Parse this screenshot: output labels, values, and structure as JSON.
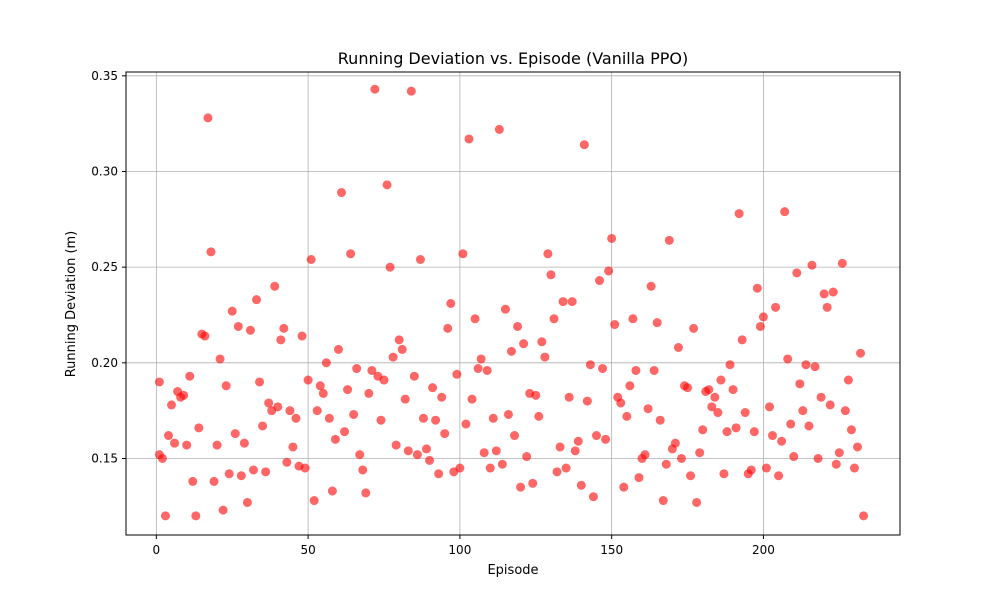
{
  "chart_data": {
    "type": "scatter",
    "title": "Running Deviation vs. Episode (Vanilla PPO)",
    "xlabel": "Episode",
    "ylabel": "Running Deviation (m)",
    "xlim": [
      -10,
      245
    ],
    "ylim": [
      0.11,
      0.352
    ],
    "xticks": [
      0,
      50,
      100,
      150,
      200
    ],
    "yticks": [
      0.15,
      0.2,
      0.25,
      0.3,
      0.35
    ],
    "xtick_labels": [
      "0",
      "50",
      "100",
      "150",
      "200"
    ],
    "ytick_labels": [
      "0.15",
      "0.20",
      "0.25",
      "0.30",
      "0.35"
    ],
    "grid": true,
    "marker_color": "#ff0000",
    "marker_alpha": 0.6,
    "series": [
      {
        "points": [
          [
            1,
            0.19
          ],
          [
            1,
            0.152
          ],
          [
            2,
            0.15
          ],
          [
            3,
            0.12
          ],
          [
            4,
            0.162
          ],
          [
            5,
            0.178
          ],
          [
            6,
            0.158
          ],
          [
            7,
            0.185
          ],
          [
            8,
            0.182
          ],
          [
            9,
            0.183
          ],
          [
            10,
            0.157
          ],
          [
            11,
            0.193
          ],
          [
            12,
            0.138
          ],
          [
            13,
            0.12
          ],
          [
            14,
            0.166
          ],
          [
            15,
            0.215
          ],
          [
            16,
            0.214
          ],
          [
            17,
            0.328
          ],
          [
            18,
            0.258
          ],
          [
            19,
            0.138
          ],
          [
            20,
            0.157
          ],
          [
            21,
            0.202
          ],
          [
            22,
            0.123
          ],
          [
            23,
            0.188
          ],
          [
            24,
            0.142
          ],
          [
            25,
            0.227
          ],
          [
            26,
            0.163
          ],
          [
            27,
            0.219
          ],
          [
            28,
            0.141
          ],
          [
            29,
            0.158
          ],
          [
            30,
            0.127
          ],
          [
            31,
            0.217
          ],
          [
            32,
            0.144
          ],
          [
            33,
            0.233
          ],
          [
            34,
            0.19
          ],
          [
            35,
            0.167
          ],
          [
            36,
            0.143
          ],
          [
            37,
            0.179
          ],
          [
            38,
            0.175
          ],
          [
            39,
            0.24
          ],
          [
            40,
            0.177
          ],
          [
            41,
            0.212
          ],
          [
            42,
            0.218
          ],
          [
            43,
            0.148
          ],
          [
            44,
            0.175
          ],
          [
            45,
            0.156
          ],
          [
            46,
            0.171
          ],
          [
            47,
            0.146
          ],
          [
            48,
            0.214
          ],
          [
            49,
            0.145
          ],
          [
            50,
            0.191
          ],
          [
            51,
            0.254
          ],
          [
            52,
            0.128
          ],
          [
            53,
            0.175
          ],
          [
            54,
            0.188
          ],
          [
            55,
            0.184
          ],
          [
            56,
            0.2
          ],
          [
            57,
            0.171
          ],
          [
            58,
            0.133
          ],
          [
            59,
            0.16
          ],
          [
            60,
            0.207
          ],
          [
            61,
            0.289
          ],
          [
            62,
            0.164
          ],
          [
            63,
            0.186
          ],
          [
            64,
            0.257
          ],
          [
            65,
            0.173
          ],
          [
            66,
            0.197
          ],
          [
            67,
            0.152
          ],
          [
            68,
            0.144
          ],
          [
            69,
            0.132
          ],
          [
            70,
            0.184
          ],
          [
            71,
            0.196
          ],
          [
            72,
            0.343
          ],
          [
            73,
            0.193
          ],
          [
            74,
            0.17
          ],
          [
            75,
            0.191
          ],
          [
            76,
            0.293
          ],
          [
            77,
            0.25
          ],
          [
            78,
            0.203
          ],
          [
            79,
            0.157
          ],
          [
            80,
            0.212
          ],
          [
            81,
            0.207
          ],
          [
            82,
            0.181
          ],
          [
            83,
            0.154
          ],
          [
            84,
            0.342
          ],
          [
            85,
            0.193
          ],
          [
            86,
            0.152
          ],
          [
            87,
            0.254
          ],
          [
            88,
            0.171
          ],
          [
            89,
            0.155
          ],
          [
            90,
            0.149
          ],
          [
            91,
            0.187
          ],
          [
            92,
            0.17
          ],
          [
            93,
            0.142
          ],
          [
            94,
            0.182
          ],
          [
            95,
            0.163
          ],
          [
            96,
            0.218
          ],
          [
            97,
            0.231
          ],
          [
            98,
            0.143
          ],
          [
            99,
            0.194
          ],
          [
            100,
            0.145
          ],
          [
            101,
            0.257
          ],
          [
            102,
            0.168
          ],
          [
            103,
            0.317
          ],
          [
            104,
            0.181
          ],
          [
            105,
            0.223
          ],
          [
            106,
            0.197
          ],
          [
            107,
            0.202
          ],
          [
            108,
            0.153
          ],
          [
            109,
            0.196
          ],
          [
            110,
            0.145
          ],
          [
            111,
            0.171
          ],
          [
            112,
            0.154
          ],
          [
            113,
            0.322
          ],
          [
            114,
            0.147
          ],
          [
            115,
            0.228
          ],
          [
            116,
            0.173
          ],
          [
            117,
            0.206
          ],
          [
            118,
            0.162
          ],
          [
            119,
            0.219
          ],
          [
            120,
            0.135
          ],
          [
            121,
            0.21
          ],
          [
            122,
            0.151
          ],
          [
            123,
            0.184
          ],
          [
            124,
            0.137
          ],
          [
            125,
            0.183
          ],
          [
            126,
            0.172
          ],
          [
            127,
            0.211
          ],
          [
            128,
            0.203
          ],
          [
            129,
            0.257
          ],
          [
            130,
            0.246
          ],
          [
            131,
            0.223
          ],
          [
            132,
            0.143
          ],
          [
            133,
            0.156
          ],
          [
            134,
            0.232
          ],
          [
            135,
            0.145
          ],
          [
            136,
            0.182
          ],
          [
            137,
            0.232
          ],
          [
            138,
            0.154
          ],
          [
            139,
            0.159
          ],
          [
            140,
            0.136
          ],
          [
            141,
            0.314
          ],
          [
            142,
            0.18
          ],
          [
            143,
            0.199
          ],
          [
            144,
            0.13
          ],
          [
            145,
            0.162
          ],
          [
            146,
            0.243
          ],
          [
            147,
            0.197
          ],
          [
            148,
            0.16
          ],
          [
            149,
            0.248
          ],
          [
            150,
            0.265
          ],
          [
            151,
            0.22
          ],
          [
            152,
            0.182
          ],
          [
            153,
            0.179
          ],
          [
            154,
            0.135
          ],
          [
            155,
            0.172
          ],
          [
            156,
            0.188
          ],
          [
            157,
            0.223
          ],
          [
            158,
            0.196
          ],
          [
            159,
            0.14
          ],
          [
            160,
            0.15
          ],
          [
            161,
            0.152
          ],
          [
            162,
            0.176
          ],
          [
            163,
            0.24
          ],
          [
            164,
            0.196
          ],
          [
            165,
            0.221
          ],
          [
            166,
            0.17
          ],
          [
            167,
            0.128
          ],
          [
            168,
            0.147
          ],
          [
            169,
            0.264
          ],
          [
            170,
            0.155
          ],
          [
            171,
            0.158
          ],
          [
            172,
            0.208
          ],
          [
            173,
            0.15
          ],
          [
            174,
            0.188
          ],
          [
            175,
            0.187
          ],
          [
            176,
            0.141
          ],
          [
            177,
            0.218
          ],
          [
            178,
            0.127
          ],
          [
            179,
            0.153
          ],
          [
            180,
            0.165
          ],
          [
            181,
            0.185
          ],
          [
            182,
            0.186
          ],
          [
            183,
            0.177
          ],
          [
            184,
            0.182
          ],
          [
            185,
            0.174
          ],
          [
            186,
            0.191
          ],
          [
            187,
            0.142
          ],
          [
            188,
            0.164
          ],
          [
            189,
            0.199
          ],
          [
            190,
            0.186
          ],
          [
            191,
            0.166
          ],
          [
            192,
            0.278
          ],
          [
            193,
            0.212
          ],
          [
            194,
            0.174
          ],
          [
            195,
            0.142
          ],
          [
            196,
            0.144
          ],
          [
            197,
            0.164
          ],
          [
            198,
            0.239
          ],
          [
            199,
            0.219
          ],
          [
            200,
            0.224
          ],
          [
            201,
            0.145
          ],
          [
            202,
            0.177
          ],
          [
            203,
            0.162
          ],
          [
            204,
            0.229
          ],
          [
            205,
            0.141
          ],
          [
            206,
            0.159
          ],
          [
            207,
            0.279
          ],
          [
            208,
            0.202
          ],
          [
            209,
            0.168
          ],
          [
            210,
            0.151
          ],
          [
            211,
            0.247
          ],
          [
            212,
            0.189
          ],
          [
            213,
            0.175
          ],
          [
            214,
            0.199
          ],
          [
            215,
            0.167
          ],
          [
            216,
            0.251
          ],
          [
            217,
            0.198
          ],
          [
            218,
            0.15
          ],
          [
            219,
            0.182
          ],
          [
            220,
            0.236
          ],
          [
            221,
            0.229
          ],
          [
            222,
            0.178
          ],
          [
            223,
            0.237
          ],
          [
            224,
            0.147
          ],
          [
            225,
            0.153
          ],
          [
            226,
            0.252
          ],
          [
            227,
            0.175
          ],
          [
            228,
            0.191
          ],
          [
            229,
            0.165
          ],
          [
            230,
            0.145
          ],
          [
            231,
            0.156
          ],
          [
            232,
            0.205
          ],
          [
            233,
            0.12
          ]
        ]
      }
    ]
  }
}
